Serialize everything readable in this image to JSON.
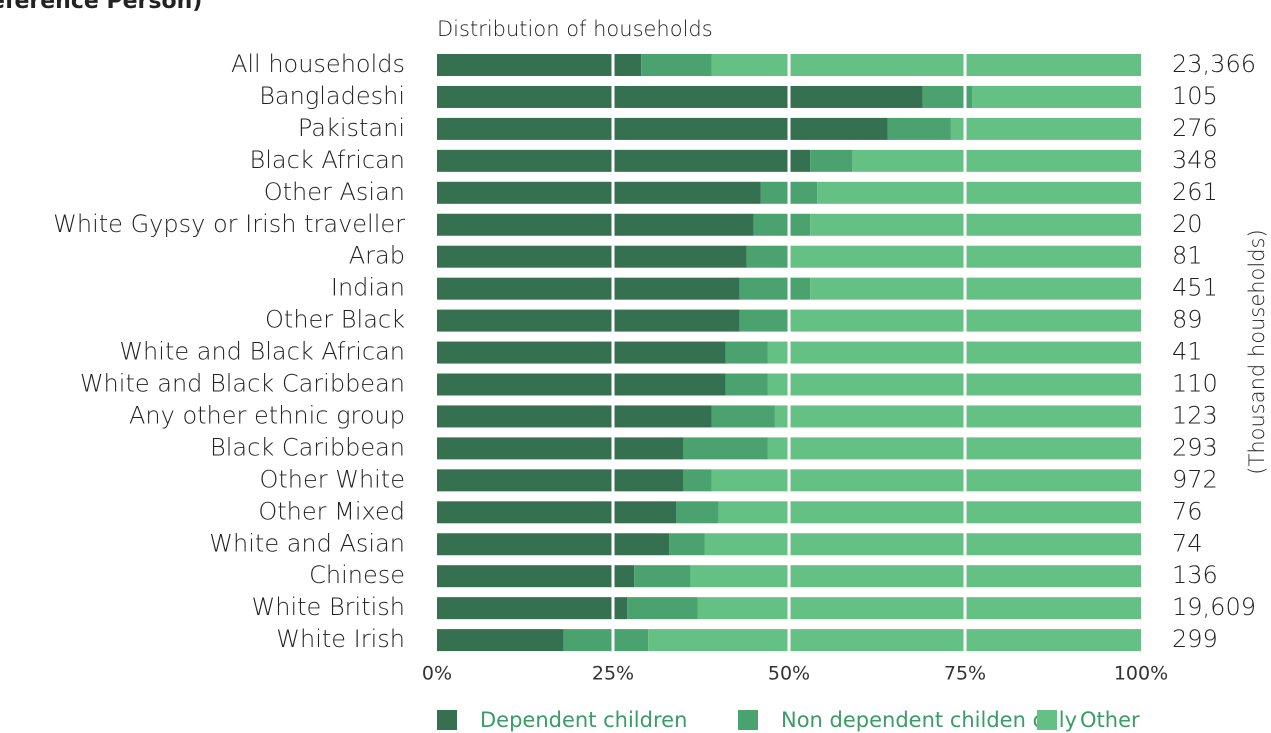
{
  "chart_data": {
    "type": "stacked_bar_horizontal",
    "title": "eference Person)",
    "axis_title": "Distribution of households",
    "categories": [
      "All households",
      "Bangladeshi",
      "Pakistani",
      "Black African",
      "Other Asian",
      "White Gypsy or Irish traveller",
      "Arab",
      "Indian",
      "Other Black",
      "White and Black African",
      "White and Black Caribbean",
      "Any other ethnic group",
      "Black Caribbean",
      "Other White",
      "Other Mixed",
      "White and Asian",
      "Chinese",
      "White British",
      "White Irish"
    ],
    "series": [
      {
        "name": "Dependent children",
        "color": "#357050",
        "values": [
          29,
          69,
          64,
          53,
          46,
          45,
          44,
          43,
          43,
          41,
          41,
          39,
          35,
          35,
          34,
          33,
          28,
          27,
          18
        ]
      },
      {
        "name": "Non dependent childen only",
        "color": "#4aa26f",
        "values": [
          10,
          7,
          9,
          6,
          8,
          8,
          6,
          10,
          7,
          6,
          6,
          9,
          12,
          4,
          6,
          5,
          8,
          10,
          12
        ]
      },
      {
        "name": "Other",
        "color": "#64c083",
        "values": [
          61,
          24,
          27,
          41,
          46,
          47,
          50,
          47,
          50,
          53,
          53,
          52,
          53,
          61,
          60,
          62,
          64,
          63,
          70
        ]
      }
    ],
    "xlim": [
      0,
      100
    ],
    "xticks": [
      {
        "value": 0,
        "label": "0%"
      },
      {
        "value": 25,
        "label": "25%"
      },
      {
        "value": 50,
        "label": "50%"
      },
      {
        "value": 75,
        "label": "75%"
      },
      {
        "value": 100,
        "label": "100%"
      }
    ],
    "households": {
      "label": "(Thousand households)",
      "values": [
        23366,
        105,
        276,
        348,
        261,
        20,
        81,
        451,
        89,
        41,
        110,
        123,
        293,
        972,
        76,
        74,
        136,
        19609,
        299
      ],
      "value_labels": [
        "23,366",
        "105",
        "276",
        "348",
        "261",
        "20",
        "81",
        "451",
        "89",
        "41",
        "110",
        "123",
        "293",
        "972",
        "76",
        "74",
        "136",
        "19,609",
        "299"
      ]
    },
    "legend": "bottom"
  }
}
